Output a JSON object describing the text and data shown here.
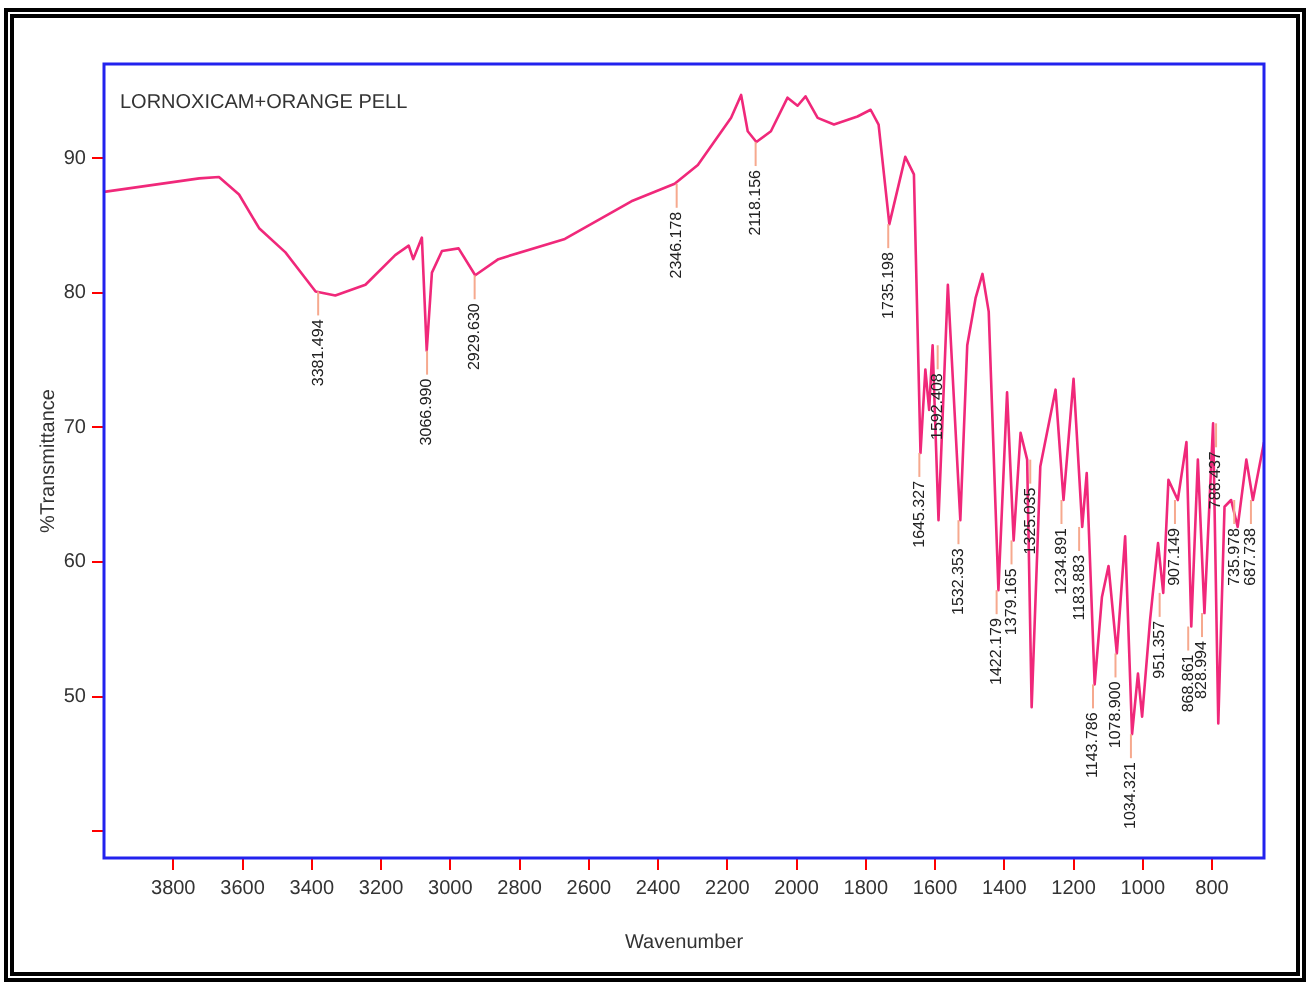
{
  "chart_data": {
    "type": "line",
    "title": "LORNOXICAM+ORANGE PELL",
    "xlabel": "Wavenumber",
    "ylabel": "%Transmittance",
    "xlim": [
      4000,
      650
    ],
    "xticks": [
      3800,
      3600,
      3400,
      3200,
      3000,
      2800,
      2600,
      2400,
      2200,
      2000,
      1800,
      1600,
      1400,
      1200,
      1000,
      800
    ],
    "ylim": [
      38,
      97
    ],
    "yticks": [
      {
        "value": 40,
        "label": null
      },
      50,
      60,
      70,
      80,
      90
    ],
    "grid": false,
    "legend": false,
    "marker": "none",
    "line_style": "solid",
    "series": [
      {
        "color": "#f0287a",
        "x": [
          4000,
          3725,
          3668,
          3610,
          3552,
          3476,
          3389,
          3332,
          3245,
          3159,
          3120,
          3107,
          3082,
          3068,
          3053,
          3024,
          2976,
          2928,
          2861,
          2669,
          2477,
          2352,
          2285,
          2189,
          2160,
          2141,
          2116,
          2074,
          2026,
          1997,
          1974,
          1939,
          1892,
          1824,
          1786,
          1763,
          1732,
          1686,
          1661,
          1642,
          1628,
          1617,
          1607,
          1590,
          1563,
          1527,
          1507,
          1483,
          1463,
          1445,
          1417,
          1392,
          1373,
          1353,
          1334,
          1321,
          1296,
          1252,
          1229,
          1200,
          1175,
          1162,
          1139,
          1118,
          1099,
          1075,
          1051,
          1031,
          1014,
          1002,
          979,
          956,
          941,
          926,
          899,
          874,
          860,
          841,
          822,
          797,
          782,
          764,
          745,
          726,
          701,
          682,
          650
        ],
        "values": [
          87.5,
          88.5,
          88.6,
          87.3,
          84.8,
          83.0,
          80.1,
          79.8,
          80.6,
          82.8,
          83.5,
          82.5,
          84.1,
          75.7,
          81.5,
          83.1,
          83.3,
          81.3,
          82.5,
          84.0,
          86.8,
          88.1,
          89.5,
          93.0,
          94.7,
          92.0,
          91.2,
          92.0,
          94.5,
          93.9,
          94.6,
          93.0,
          92.5,
          93.1,
          93.6,
          92.5,
          85.1,
          90.1,
          88.8,
          68.1,
          74.3,
          71.3,
          76.1,
          63.1,
          80.6,
          63.1,
          76.1,
          79.6,
          81.4,
          78.6,
          57.9,
          72.6,
          61.6,
          69.6,
          67.6,
          49.2,
          67.1,
          72.8,
          64.6,
          73.6,
          62.6,
          66.6,
          50.9,
          57.4,
          59.7,
          53.2,
          61.9,
          47.2,
          51.7,
          48.5,
          55.7,
          61.4,
          57.7,
          66.1,
          64.6,
          68.9,
          55.2,
          67.6,
          56.2,
          70.3,
          48.0,
          64.1,
          64.6,
          62.6,
          67.6,
          64.6,
          68.9
        ]
      }
    ],
    "annotations": [
      {
        "text": "3381.494",
        "x": 3381.494,
        "y": 80.1
      },
      {
        "text": "3066.990",
        "x": 3066.99,
        "y": 75.7
      },
      {
        "text": "2929.630",
        "x": 2929.63,
        "y": 81.3
      },
      {
        "text": "2346.178",
        "x": 2346.178,
        "y": 88.1
      },
      {
        "text": "2118.156",
        "x": 2118.156,
        "y": 91.2
      },
      {
        "text": "1735.198",
        "x": 1735.198,
        "y": 85.1
      },
      {
        "text": "1645.327",
        "x": 1645.327,
        "y": 68.1
      },
      {
        "text": "1592.408",
        "x": 1592.408,
        "y": 76.1
      },
      {
        "text": "1532.353",
        "x": 1532.353,
        "y": 63.1
      },
      {
        "text": "1422.179",
        "x": 1422.179,
        "y": 57.9
      },
      {
        "text": "1379.165",
        "x": 1379.165,
        "y": 61.6
      },
      {
        "text": "1325.035",
        "x": 1325.035,
        "y": 67.6
      },
      {
        "text": "1234.891",
        "x": 1234.891,
        "y": 64.6
      },
      {
        "text": "1183.883",
        "x": 1183.883,
        "y": 62.6
      },
      {
        "text": "1143.786",
        "x": 1143.786,
        "y": 50.9
      },
      {
        "text": "1078.900",
        "x": 1078.9,
        "y": 53.2
      },
      {
        "text": "1034.321",
        "x": 1034.321,
        "y": 47.2
      },
      {
        "text": "951.357",
        "x": 951.357,
        "y": 57.7
      },
      {
        "text": "907.149",
        "x": 907.149,
        "y": 64.6
      },
      {
        "text": "868.861",
        "x": 868.861,
        "y": 55.2
      },
      {
        "text": "828.994",
        "x": 828.994,
        "y": 56.2
      },
      {
        "text": "788.437",
        "x": 788.437,
        "y": 70.3
      },
      {
        "text": "735.978",
        "x": 735.978,
        "y": 64.6
      },
      {
        "text": "687.738",
        "x": 687.738,
        "y": 64.6
      }
    ]
  }
}
